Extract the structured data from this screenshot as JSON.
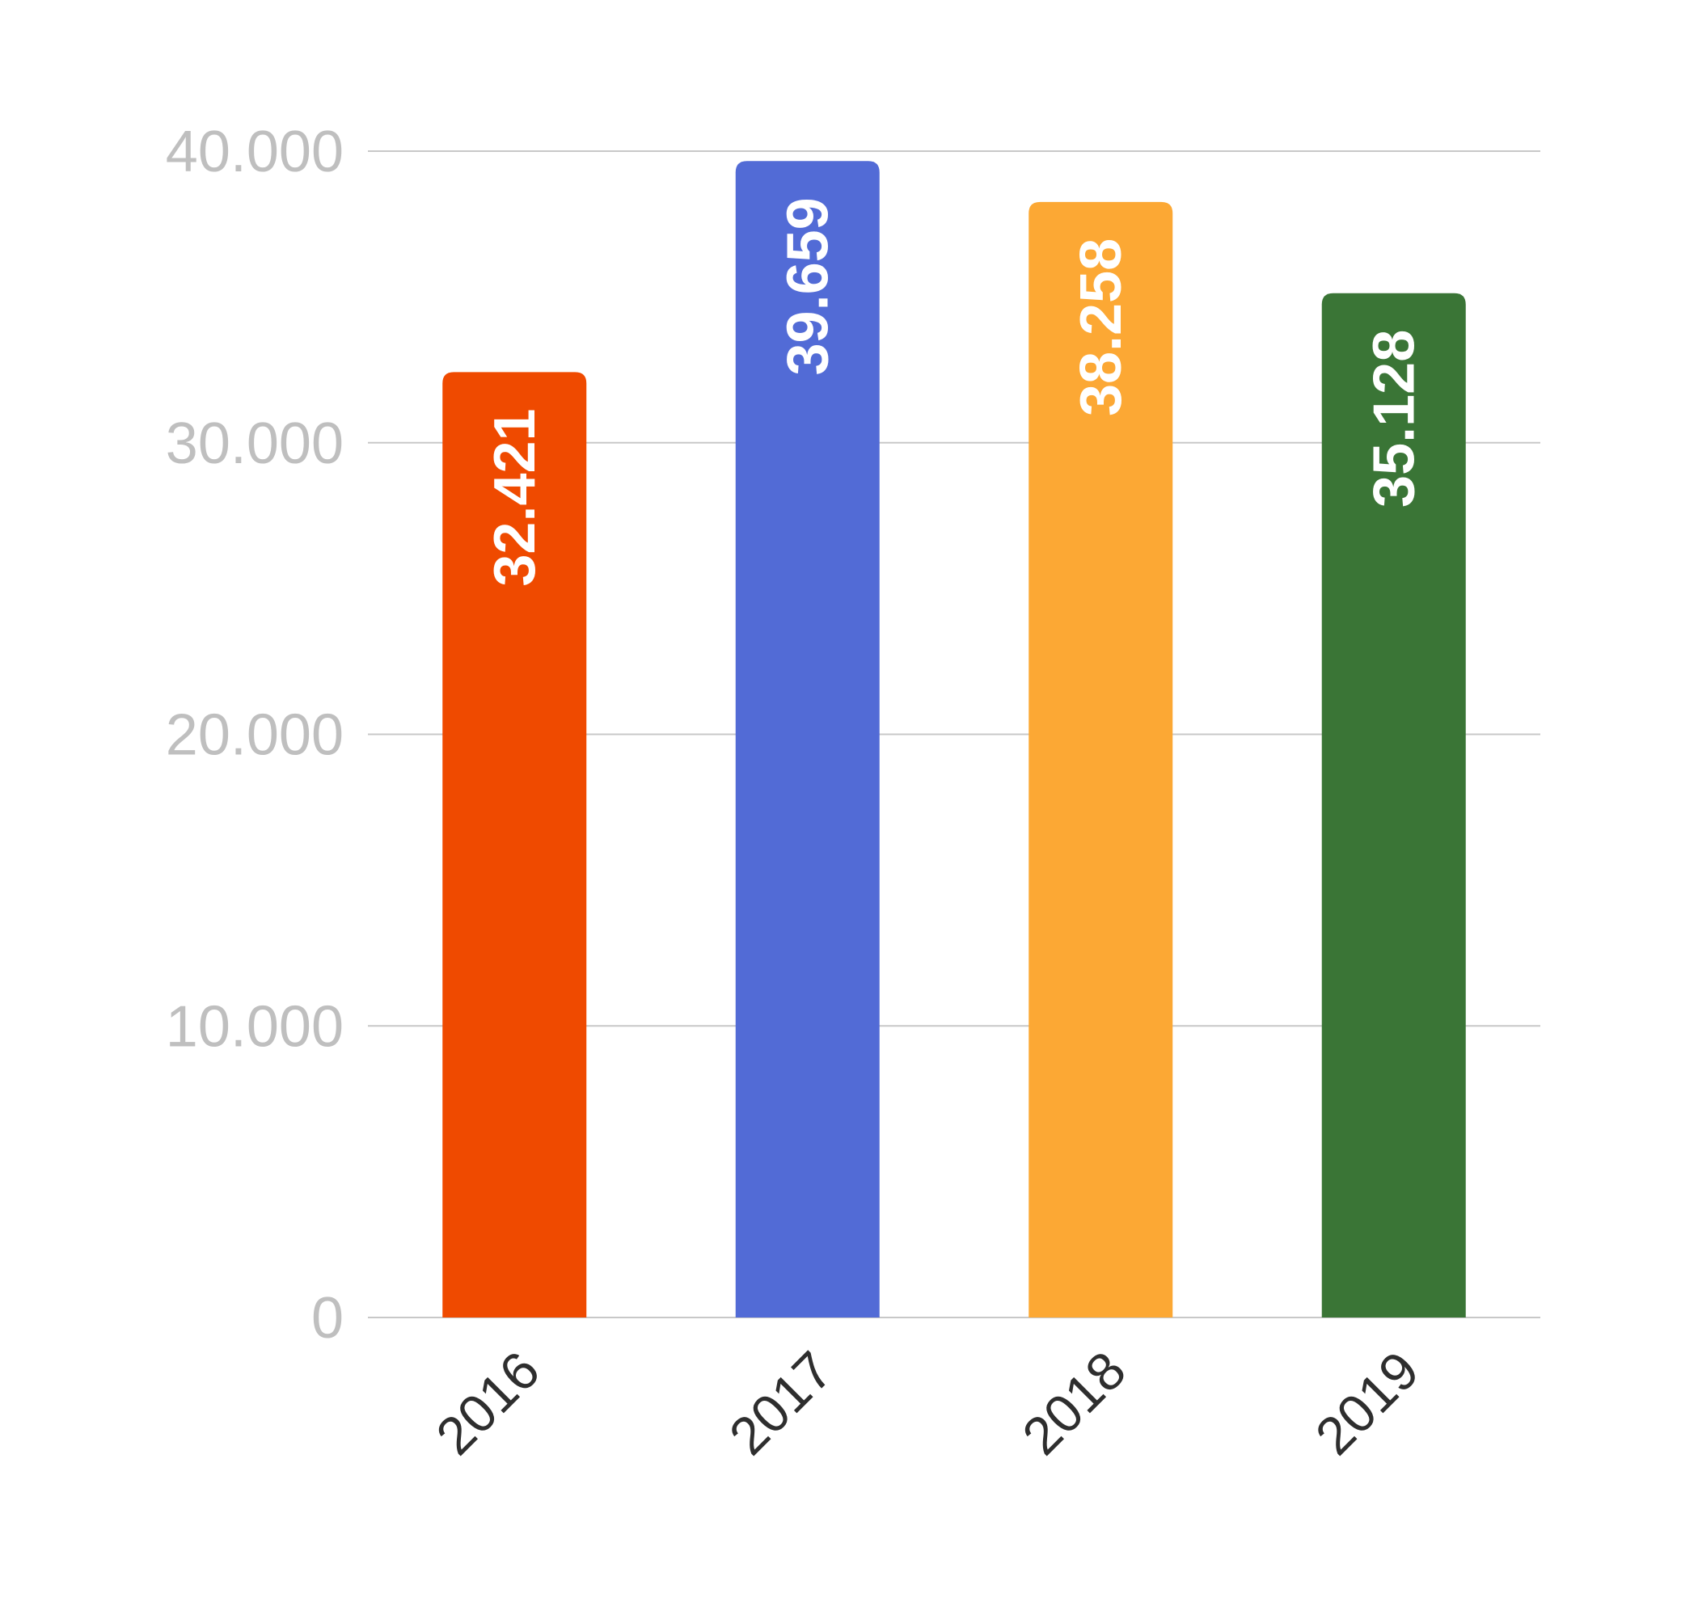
{
  "chart_data": {
    "type": "bar",
    "title": "",
    "xlabel": "",
    "ylabel": "",
    "categories": [
      "2016",
      "2017",
      "2018",
      "2019"
    ],
    "values": [
      32421,
      39659,
      38258,
      35128
    ],
    "value_labels": [
      "32.421",
      "39.659",
      "38.258",
      "35.128"
    ],
    "colors": [
      "#ef4a00",
      "#526bd6",
      "#fca834",
      "#3a7536"
    ],
    "ylim": [
      0,
      40000
    ],
    "yticks": [
      0,
      10000,
      20000,
      30000,
      40000
    ],
    "ytick_labels": [
      "0",
      "10.000",
      "20.000",
      "30.000",
      "40.000"
    ],
    "grid": true,
    "legend": "none"
  }
}
